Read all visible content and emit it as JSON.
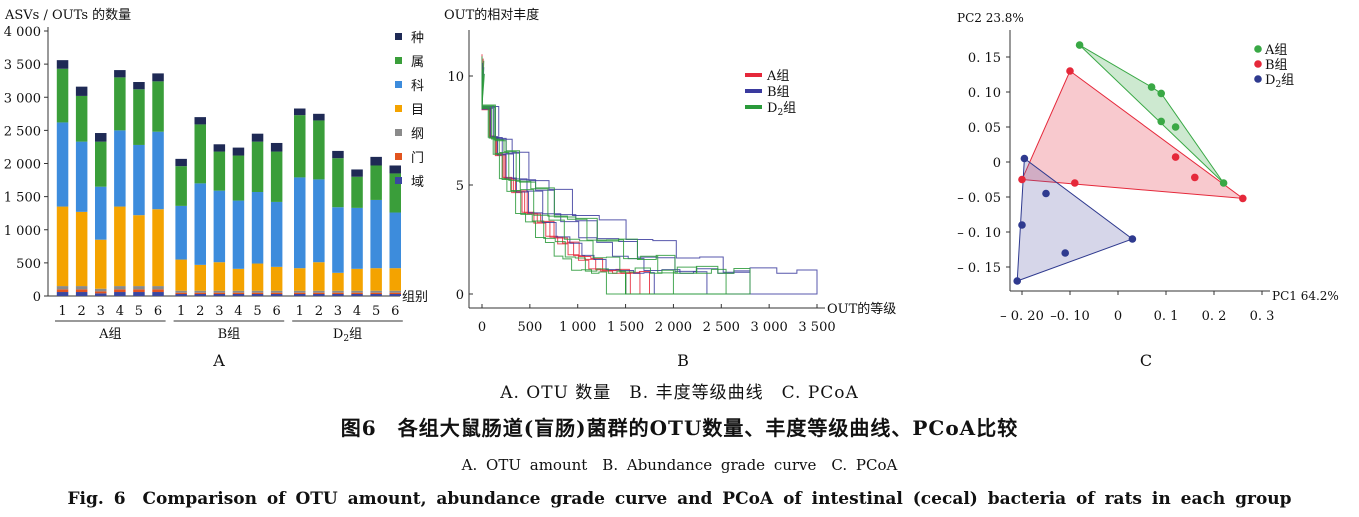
{
  "chart_data": [
    {
      "type": "bar",
      "panel_label": "A",
      "ylabel": "ASVs / OUTs 的数量",
      "xlabel": "组别",
      "ylim": [
        0,
        4000
      ],
      "y_ticks": [
        "0",
        "500",
        "1 000",
        "1 500",
        "2 000",
        "2 500",
        "3 000",
        "3 500",
        "4 000"
      ],
      "y_tick_values": [
        0,
        500,
        1000,
        1500,
        2000,
        2500,
        3000,
        3500,
        4000
      ],
      "categories": [
        "1",
        "2",
        "3",
        "4",
        "5",
        "6",
        "1",
        "2",
        "3",
        "4",
        "5",
        "6",
        "1",
        "2",
        "3",
        "4",
        "5",
        "6"
      ],
      "groups": [
        "A组",
        "B组",
        "D2组"
      ],
      "group_label_parts": [
        [
          "A组"
        ],
        [
          "B组"
        ],
        [
          "D",
          "2",
          "组"
        ]
      ],
      "legend_position": "right",
      "series": [
        {
          "name": "域",
          "color": "#3a47a0",
          "values": [
            60,
            60,
            40,
            60,
            60,
            60,
            30,
            30,
            30,
            30,
            30,
            30,
            30,
            30,
            30,
            30,
            30,
            30
          ]
        },
        {
          "name": "门",
          "color": "#e2541e",
          "values": [
            40,
            40,
            30,
            40,
            40,
            40,
            20,
            20,
            20,
            20,
            20,
            20,
            20,
            20,
            20,
            20,
            20,
            20
          ]
        },
        {
          "name": "纲",
          "color": "#8a8a8a",
          "values": [
            50,
            50,
            40,
            50,
            50,
            50,
            30,
            30,
            30,
            30,
            30,
            30,
            30,
            30,
            30,
            30,
            30,
            30
          ]
        },
        {
          "name": "目",
          "color": "#f4a300",
          "values": [
            1200,
            1120,
            740,
            1200,
            1070,
            1160,
            470,
            390,
            430,
            330,
            410,
            360,
            340,
            430,
            270,
            330,
            340,
            340
          ]
        },
        {
          "name": "科",
          "color": "#3d8cdc",
          "values": [
            1270,
            1060,
            800,
            1150,
            1060,
            1170,
            810,
            1230,
            1080,
            1030,
            1080,
            980,
            1370,
            1250,
            990,
            920,
            1030,
            840
          ]
        },
        {
          "name": "属",
          "color": "#3a9e3a",
          "values": [
            810,
            690,
            680,
            800,
            840,
            760,
            600,
            890,
            590,
            680,
            760,
            760,
            940,
            890,
            740,
            470,
            520,
            590
          ]
        },
        {
          "name": "种",
          "color": "#1f2a55",
          "values": [
            130,
            140,
            130,
            110,
            110,
            120,
            110,
            110,
            110,
            120,
            120,
            130,
            100,
            100,
            110,
            110,
            130,
            120
          ]
        }
      ]
    },
    {
      "type": "line",
      "panel_label": "B",
      "ylabel": "OUT的相对丰度",
      "xlabel": "OUT的等级",
      "xlim": [
        0,
        3500
      ],
      "ylim": [
        0,
        12
      ],
      "x_ticks": [
        "0",
        "500",
        "1 000",
        "1 500",
        "2 000",
        "2 500",
        "3 000",
        "3 500"
      ],
      "x_tick_values": [
        0,
        500,
        1000,
        1500,
        2000,
        2500,
        3000,
        3500
      ],
      "y_ticks": [
        "0",
        "5",
        "10"
      ],
      "y_tick_values": [
        0,
        5,
        10
      ],
      "legend_position": "top-right",
      "legend_parts": [
        [
          "A组"
        ],
        [
          "B组"
        ],
        [
          "D",
          "2",
          "组"
        ]
      ],
      "series": [
        {
          "name": "A组",
          "color": "#e5283a",
          "ends": [
            1550,
            1650,
            1750
          ],
          "peaks": [
            11,
            10.5,
            10.8
          ]
        },
        {
          "name": "B组",
          "color": "#3a3a9e",
          "ends": [
            1800,
            2350,
            2800,
            3500
          ],
          "peaks": [
            10.2,
            10.6,
            9.9,
            10.4
          ]
        },
        {
          "name": "D2组",
          "color": "#2a9a3a",
          "ends": [
            1300,
            1500,
            2000,
            2550,
            2800
          ],
          "peaks": [
            10.9,
            10.3,
            10,
            10.7,
            10.1
          ]
        }
      ]
    },
    {
      "type": "scatter",
      "panel_label": "C",
      "ylabel": "PC2 23.8%",
      "xlabel": "PC1 64.2%",
      "xlim": [
        -0.2,
        0.3
      ],
      "ylim": [
        -0.18,
        0.17
      ],
      "x_ticks": [
        "– 0. 20",
        "–0. 10",
        "0",
        "0. 1",
        "0. 2",
        "0. 3"
      ],
      "x_tick_values": [
        -0.2,
        -0.1,
        0,
        0.1,
        0.2,
        0.3
      ],
      "y_ticks": [
        "0. 15",
        "0. 10",
        "0. 05",
        "0",
        "– 0. 05",
        "– 0. 10",
        "– 0. 15"
      ],
      "y_tick_values": [
        0.15,
        0.1,
        0.05,
        0,
        -0.05,
        -0.1,
        -0.15
      ],
      "legend_position": "top-right",
      "legend_parts": [
        [
          "A组"
        ],
        [
          "B组"
        ],
        [
          "D",
          "2",
          "组"
        ]
      ],
      "series": [
        {
          "name": "A组",
          "color": "#39a845",
          "fill": "#39a845",
          "points": [
            [
              -0.08,
              0.167
            ],
            [
              0.07,
              0.107
            ],
            [
              0.09,
              0.098
            ],
            [
              0.09,
              0.058
            ],
            [
              0.12,
              0.05
            ],
            [
              0.22,
              -0.03
            ]
          ]
        },
        {
          "name": "B组",
          "color": "#e5283a",
          "fill": "#e5283a",
          "points": [
            [
              -0.1,
              0.13
            ],
            [
              -0.2,
              -0.025
            ],
            [
              -0.09,
              -0.03
            ],
            [
              0.12,
              0.007
            ],
            [
              0.16,
              -0.022
            ],
            [
              0.26,
              -0.052
            ]
          ]
        },
        {
          "name": "D2组",
          "color": "#2f3a8f",
          "fill": "#5a5aa8",
          "points": [
            [
              -0.195,
              0.005
            ],
            [
              -0.2,
              -0.09
            ],
            [
              -0.15,
              -0.045
            ],
            [
              -0.11,
              -0.13
            ],
            [
              0.03,
              -0.11
            ],
            [
              -0.21,
              -0.17
            ]
          ]
        }
      ]
    }
  ],
  "captions": {
    "sub_cn": "A. OTU 数量　B. 丰度等级曲线　C. PCoA",
    "title_cn": "图6　各组大鼠肠道(盲肠)菌群的OTU数量、丰度等级曲线、PCoA比较",
    "sub_en": "A. OTU amount　B. Abundance grade curve　C. PCoA",
    "title_en": "Fig. 6　Comparison of OTU amount, abundance grade curve and PCoA of intestinal (cecal) bacteria of rats in each group"
  }
}
